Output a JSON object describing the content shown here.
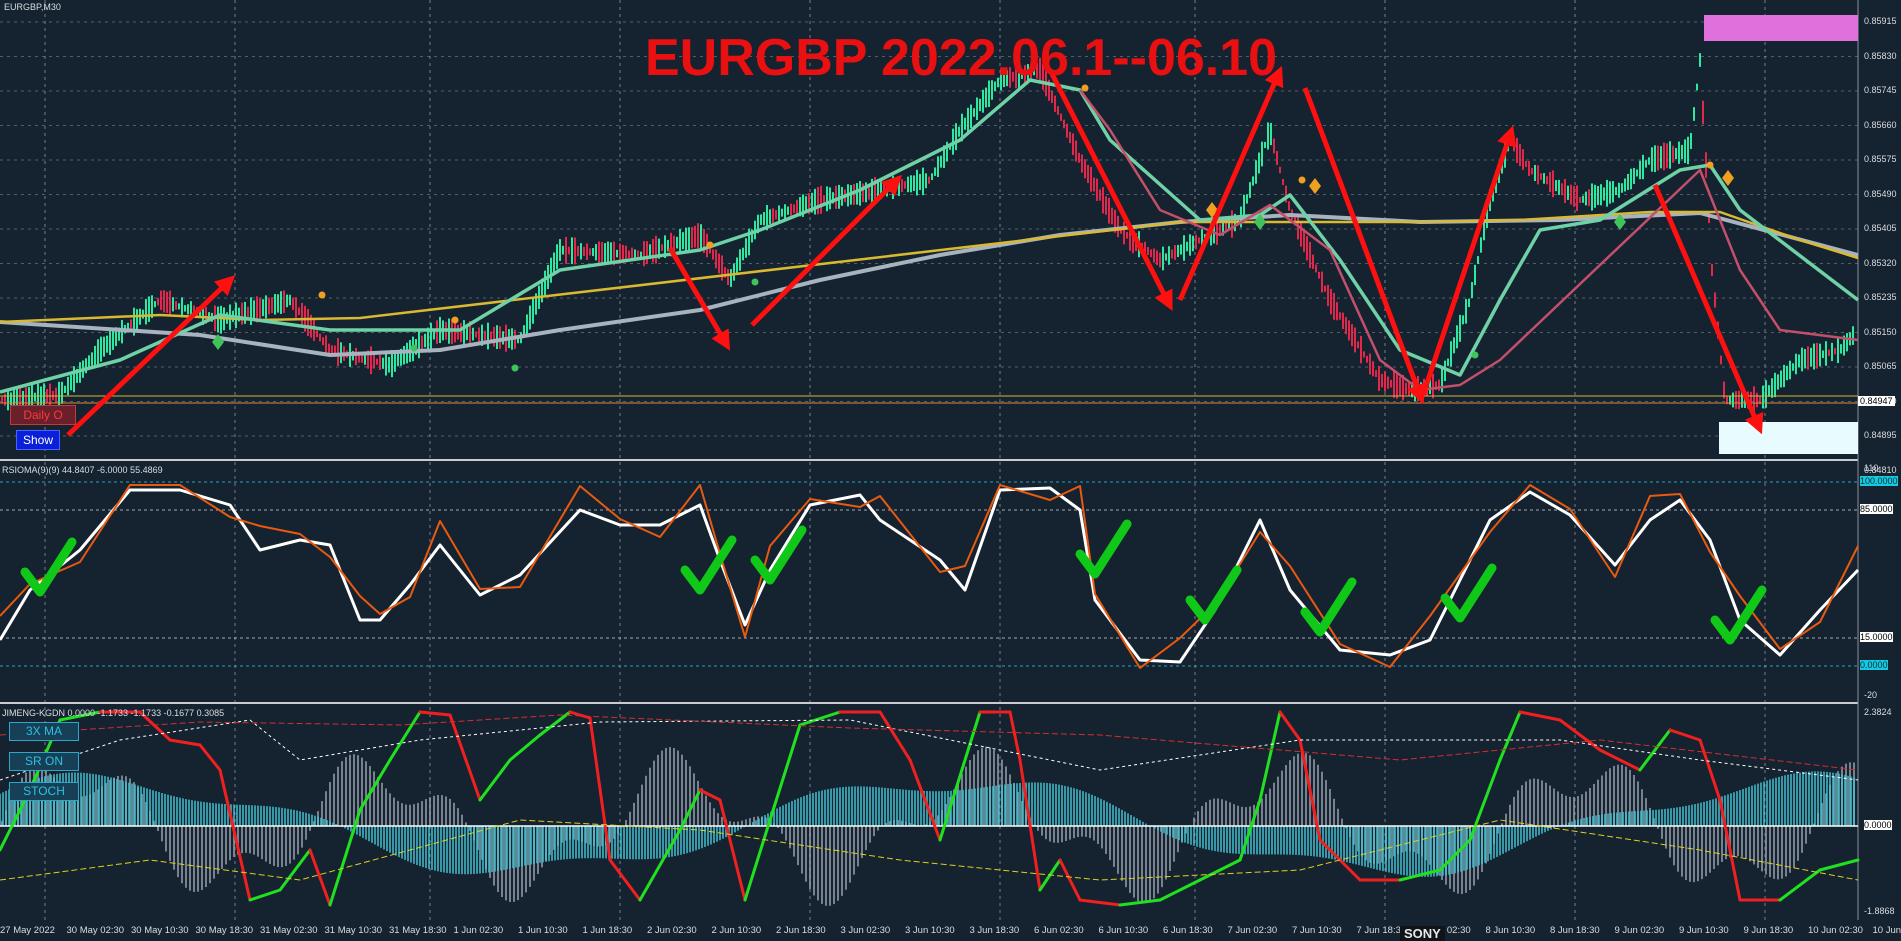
{
  "window": {
    "symbol_title": "EURGBP,M30"
  },
  "title": "EURGBP 2022.06.1--06.10",
  "buttons": {
    "daily": "Daily O",
    "show": "Show",
    "ma": "3X MA",
    "sr": "SR ON",
    "stoch": "STOCH"
  },
  "indicators": {
    "rsioma_header": "RSIOMA(9)(9) 44.8407 -6.0000 55.4869",
    "jimeng_header": "JIMENG-KGDN 0.0000 -1.1733 -1.1733 -0.1677 0.3085"
  },
  "price_axis": [
    "0.85915",
    "0.85830",
    "0.85745",
    "0.85660",
    "0.85575",
    "0.85490",
    "0.85405",
    "0.85320",
    "0.85235",
    "0.85150",
    "0.85065",
    "0.84980",
    "0.84895",
    "0.84810"
  ],
  "current_price": "0.84947",
  "rsioma_axis": [
    "110",
    "100.0000",
    "85.0000",
    "15.0000",
    "0.0000",
    "-20"
  ],
  "jimeng_axis": [
    "2.3824",
    "0.0000",
    "-1.8868"
  ],
  "time_axis": [
    "27 May 2022",
    "30 May 02:30",
    "30 May 10:30",
    "30 May 18:30",
    "31 May 02:30",
    "31 May 10:30",
    "31 May 18:30",
    "1 Jun 02:30",
    "1 Jun 10:30",
    "1 Jun 18:30",
    "2 Jun 02:30",
    "2 Jun 10:30",
    "2 Jun 18:30",
    "3 Jun 02:30",
    "3 Jun 10:30",
    "3 Jun 18:30",
    "6 Jun 02:30",
    "6 Jun 10:30",
    "6 Jun 18:30",
    "7 Jun 02:30",
    "7 Jun 10:30",
    "7 Jun 18:30",
    "8 Jun 02:30",
    "8 Jun 10:30",
    "8 Jun 18:30",
    "9 Jun 02:30",
    "9 Jun 10:30",
    "9 Jun 18:30",
    "10 Jun 02:30",
    "10 Jun 10:30"
  ],
  "watermark": "SONY",
  "colors": {
    "background": "#15222f",
    "bull": "#2ee8a0",
    "bear": "#e0284a",
    "annotation": "#ff1010",
    "check": "#10c818",
    "rsi_fast": "#e85a10",
    "rsi_slow": "#ffffff",
    "hist_pos": "#45c8d8",
    "hist_gray": "#9aa3b0"
  }
}
